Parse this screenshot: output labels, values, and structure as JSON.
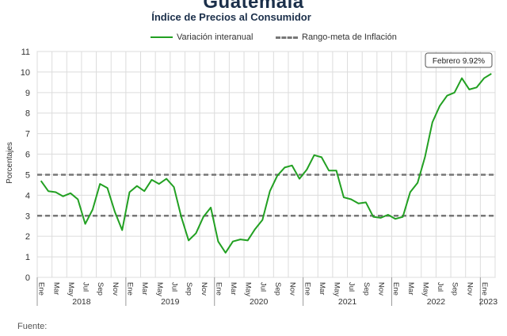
{
  "header": {
    "title": "Guatemala",
    "subtitle": "Índice de Precios al Consumidor"
  },
  "legend": {
    "series_label": "Variación interanual",
    "band_label": "Rango-meta de Inflación"
  },
  "footer": {
    "source_label": "Fuente:"
  },
  "chart_data": {
    "type": "line",
    "ylabel": "Porcentajes",
    "ylim": [
      0,
      11
    ],
    "yticks": [
      0,
      1,
      2,
      3,
      4,
      5,
      6,
      7,
      8,
      9,
      10,
      11
    ],
    "grid": true,
    "legend_position": "top",
    "month_tick_labels": [
      "Ene",
      "Mar",
      "May",
      "Jul",
      "Sep",
      "Nov",
      "Ene",
      "Mar",
      "May",
      "Jul",
      "Sep",
      "Nov",
      "Ene",
      "Mar",
      "May",
      "Jul",
      "Sep",
      "Nov",
      "Ene",
      "Mar",
      "May",
      "Jul",
      "Sep",
      "Nov",
      "Ene",
      "Mar",
      "May",
      "Jul",
      "Sep",
      "Nov",
      "Ene"
    ],
    "years": [
      "2018",
      "2019",
      "2020",
      "2021",
      "2022",
      "2023"
    ],
    "target_band": [
      3,
      5
    ],
    "annotation": "Febrero 9.92%",
    "series": [
      {
        "name": "Variación interanual",
        "color": "#22a022",
        "values": [
          4.7,
          4.2,
          4.15,
          3.95,
          4.1,
          3.8,
          2.6,
          3.3,
          4.55,
          4.35,
          3.2,
          2.3,
          4.15,
          4.45,
          4.2,
          4.75,
          4.55,
          4.8,
          4.4,
          2.95,
          1.8,
          2.15,
          2.95,
          3.4,
          1.75,
          1.2,
          1.75,
          1.85,
          1.8,
          2.35,
          2.8,
          4.2,
          4.95,
          5.35,
          5.45,
          4.8,
          5.25,
          5.95,
          5.85,
          5.2,
          5.2,
          3.9,
          3.8,
          3.6,
          3.65,
          2.95,
          2.9,
          3.05,
          2.85,
          2.95,
          4.15,
          4.6,
          5.85,
          7.55,
          8.35,
          8.85,
          9.0,
          9.7,
          9.15,
          9.25,
          9.7,
          9.92
        ]
      },
      {
        "name": "Rango-meta de Inflación",
        "color": "#777777",
        "values": [
          3,
          5
        ]
      }
    ]
  }
}
